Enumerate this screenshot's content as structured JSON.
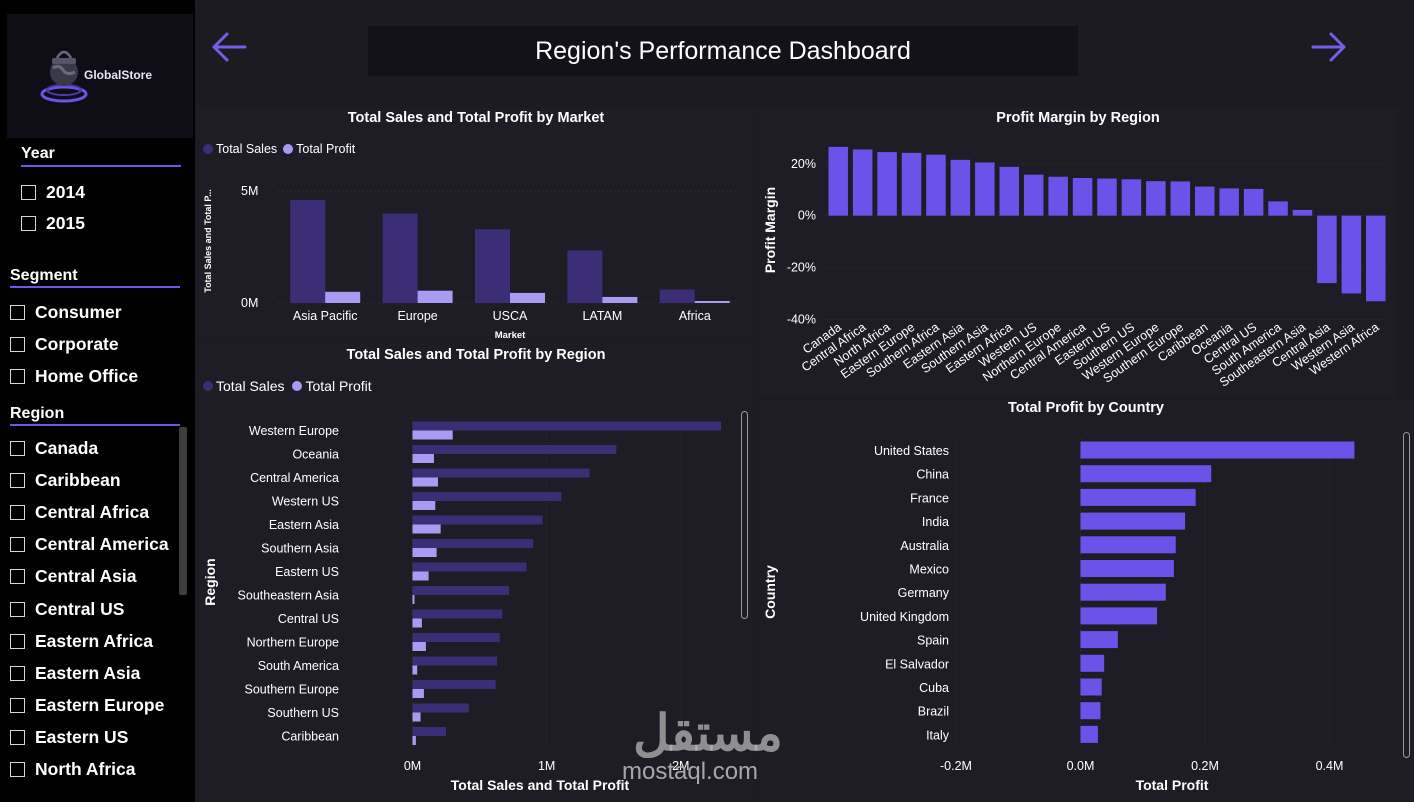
{
  "logo": {
    "brand": "GlobalStore"
  },
  "header": {
    "title": "Region's Performance Dashboard",
    "back": "previous-page",
    "forward": "next-page"
  },
  "slicers": {
    "year": {
      "title": "Year",
      "options": [
        "2014",
        "2015"
      ]
    },
    "segment": {
      "title": "Segment",
      "options": [
        "Consumer",
        "Corporate",
        "Home Office"
      ]
    },
    "region": {
      "title": "Region",
      "options": [
        "Canada",
        "Caribbean",
        "Central Africa",
        "Central America",
        "Central Asia",
        "Central US",
        "Eastern Africa",
        "Eastern Asia",
        "Eastern Europe",
        "Eastern US",
        "North Africa"
      ]
    }
  },
  "colors": {
    "sales": "#3b2e76",
    "profit": "#a89cf2",
    "accent": "#6b53e9",
    "bg": "#1c1b22",
    "panel": "#1e1d25"
  },
  "watermark": {
    "text": "mostaql.com",
    "logo_text": "مستقل"
  },
  "chart_data": [
    {
      "id": "market",
      "type": "bar",
      "title": "Total Sales and Total Profit by Market",
      "legend": [
        "Total Sales",
        "Total Profit"
      ],
      "xlabel": "Market",
      "ylabel": "Total Sales and Total P...",
      "categories": [
        "Asia Pacific",
        "Europe",
        "USCA",
        "LATAM",
        "Africa"
      ],
      "series": [
        {
          "name": "Total Sales",
          "values": [
            4.6,
            4.0,
            3.3,
            2.35,
            0.6
          ]
        },
        {
          "name": "Total Profit",
          "values": [
            0.5,
            0.55,
            0.45,
            0.27,
            0.09
          ]
        }
      ],
      "unit": "M",
      "ylim": [
        0,
        5.5
      ],
      "yticks": [
        {
          "v": 0,
          "label": "0M"
        },
        {
          "v": 5,
          "label": "5M"
        }
      ]
    },
    {
      "id": "margin",
      "type": "bar",
      "title": "Profit Margin by Region",
      "ylabel": "Profit Margin",
      "categories": [
        "Canada",
        "Central Africa",
        "North Africa",
        "Eastern Europe",
        "Southern Africa",
        "Eastern Asia",
        "Southern Asia",
        "Eastern Africa",
        "Western US",
        "Northern Europe",
        "Central America",
        "Eastern US",
        "Southern US",
        "Western Europe",
        "Southern Europe",
        "Caribbean",
        "Oceania",
        "Central US",
        "South America",
        "Southeastern Asia",
        "Central Asia",
        "Western Asia",
        "Western Africa"
      ],
      "values": [
        26.5,
        25.5,
        24.5,
        24.2,
        23.5,
        21.5,
        20.5,
        18.8,
        15.8,
        15.0,
        14.5,
        14.3,
        14.0,
        13.3,
        13.2,
        11.2,
        10.5,
        10.3,
        5.5,
        2.2,
        -26,
        -30,
        -33
      ],
      "unit": "%",
      "ylim": [
        -41,
        28
      ],
      "yticks": [
        {
          "v": 20,
          "label": "20%"
        },
        {
          "v": 0,
          "label": "0%"
        },
        {
          "v": -20,
          "label": "-20%"
        },
        {
          "v": -40,
          "label": "-40%"
        }
      ]
    },
    {
      "id": "region",
      "type": "bar",
      "orientation": "horizontal",
      "title": "Total Sales and Total Profit by Region",
      "legend": [
        "Total Sales",
        "Total Profit"
      ],
      "xlabel": "Total Sales and Total Profit",
      "ylabel": "Region",
      "categories": [
        "Western Europe",
        "Oceania",
        "Central America",
        "Western US",
        "Eastern Asia",
        "Southern Asia",
        "Eastern US",
        "Southeastern Asia",
        "Central US",
        "Northern Europe",
        "South America",
        "Southern Europe",
        "Southern US",
        "Caribbean"
      ],
      "series": [
        {
          "name": "Total Sales",
          "values": [
            2.3,
            1.52,
            1.32,
            1.11,
            0.97,
            0.9,
            0.85,
            0.72,
            0.67,
            0.65,
            0.63,
            0.62,
            0.42,
            0.25
          ]
        },
        {
          "name": "Total Profit",
          "values": [
            0.3,
            0.16,
            0.19,
            0.17,
            0.21,
            0.18,
            0.12,
            0.015,
            0.07,
            0.1,
            0.035,
            0.085,
            0.06,
            0.025
          ]
        }
      ],
      "unit": "M",
      "xlim": [
        0,
        2.3
      ],
      "xticks": [
        {
          "v": 0,
          "label": "0M"
        },
        {
          "v": 1,
          "label": "1M"
        },
        {
          "v": 2,
          "label": "2M"
        }
      ]
    },
    {
      "id": "country",
      "type": "bar",
      "orientation": "horizontal",
      "title": "Total Profit by Country",
      "xlabel": "Total Profit",
      "ylabel": "Country",
      "categories": [
        "United States",
        "China",
        "France",
        "India",
        "Australia",
        "Mexico",
        "Germany",
        "United Kingdom",
        "Spain",
        "El Salvador",
        "Cuba",
        "Brazil",
        "Italy"
      ],
      "values": [
        0.44,
        0.21,
        0.185,
        0.168,
        0.153,
        0.15,
        0.137,
        0.123,
        0.06,
        0.038,
        0.034,
        0.032,
        0.028
      ],
      "unit": "M",
      "xlim": [
        -0.2,
        0.5
      ],
      "xticks": [
        {
          "v": -0.2,
          "label": "-0.2M"
        },
        {
          "v": 0,
          "label": "0.0M"
        },
        {
          "v": 0.2,
          "label": "0.2M"
        },
        {
          "v": 0.4,
          "label": "0.4M"
        }
      ]
    }
  ]
}
